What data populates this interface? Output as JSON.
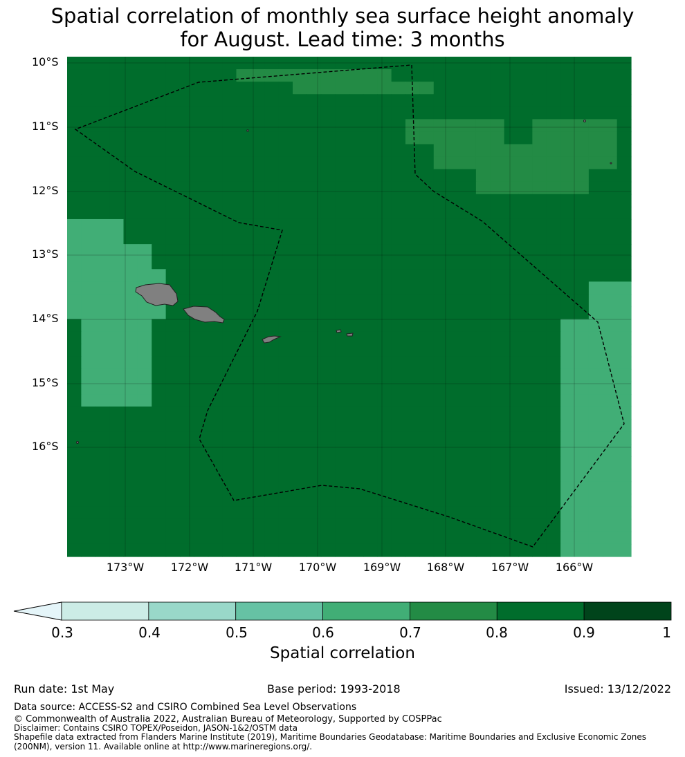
{
  "title_line1": "Spatial correlation of monthly sea surface height anomaly",
  "title_line2": "for August. Lead time: 3 months",
  "lat_labels": [
    "10°S",
    "11°S",
    "12°S",
    "13°S",
    "14°S",
    "15°S",
    "16°S"
  ],
  "lon_labels": [
    "173°W",
    "172°W",
    "171°W",
    "170°W",
    "169°W",
    "168°W",
    "167°W",
    "166°W"
  ],
  "colorbar": {
    "label": "Spatial correlation",
    "ticks": [
      "0.3",
      "0.4",
      "0.5",
      "0.6",
      "0.7",
      "0.8",
      "0.9",
      "1"
    ],
    "colors": [
      "#ccece6",
      "#99d8c9",
      "#66c2a4",
      "#41ae76",
      "#238b45",
      "#006d2c",
      "#00441b"
    ],
    "under_color": "#e5f5f9"
  },
  "land_color": "#808080",
  "run_date": "Run date: 1st May",
  "base_period": "Base period: 1993-2018",
  "issued": "Issued: 13/12/2022",
  "data_source": "Data source: ACCESS-S2 and CSIRO Combined Sea Level Observations",
  "copyright": "© Commonwealth of Australia 2022, Australian Bureau of Meteorology, Supported by COSPPac",
  "disclaimer": "Disclaimer: Contains CSIRO TOPEX/Poseidon, JASON-1&2/OSTM data",
  "shapefile_line1": "Shapefile data extracted from Flanders Marine Institute (2019), Maritime Boundaries Geodatabase: Maritime Boundaries and Exclusive Economic Zones",
  "shapefile_line2": "(200NM), version 11. Available online at http://www.marineregions.org/.",
  "correlation_grid": [
    "6666666666666666666666666666666666666666",
    "6666666666665555555555566666666666666666",
    "6666666666666666555555555566666666666666",
    "6666666666666666666666666666666666666666",
    "6666666666666666666666666666666666666666",
    "6666666666666666666666665555555665555556",
    "6666666666666666666666665555555665555556",
    "6666666666666666666666666655555555555556",
    "6666666666666666666666666655555555555556",
    "6666666666666666666666666666655555555666",
    "6666666666666666666666666666655555555666",
    "6666666666666666666666666666666666666666",
    "6666666666666666666666666666666666666666",
    "4444666666666666666666666666666666666666",
    "4444666666666666666666666666666666666666",
    "4444446666666666666666666666666666666666",
    "4444446666666666666666666666666666666666",
    "4444444666666666666666666666666666666666",
    "4444444666666666666666666666666666666444",
    "4444444666666666666666666666666666666444",
    "4444444666666666666666666666666666666444",
    "6444446666666666666666666666666666644444",
    "6444446666666666666666666666666666644444",
    "6444446666666666666666666666666666644444",
    "6444446666666666666666666666666666644444",
    "6444446666666666666666666666666666644444",
    "6444446666666666666666666666666666644444",
    "6444446666666666666666666666666666644444",
    "6666666666666666666666666666666666644444",
    "6666666666666666666666666666666666644444",
    "6666666666666666666666666666666666644444",
    "6666666666666666666666666666666666644444",
    "6666666666666666666666666666666666644444",
    "6666666666666666666666666666666666644444",
    "6666666666666666666666666666666666644444",
    "6666666666666666666666666666666666644444",
    "6666666666666666666666666666666666644444",
    "6666666666666666666666666666666666644444",
    "6666666666666666666666666666666666644444",
    "6666666666666666666666666666666666644444"
  ]
}
